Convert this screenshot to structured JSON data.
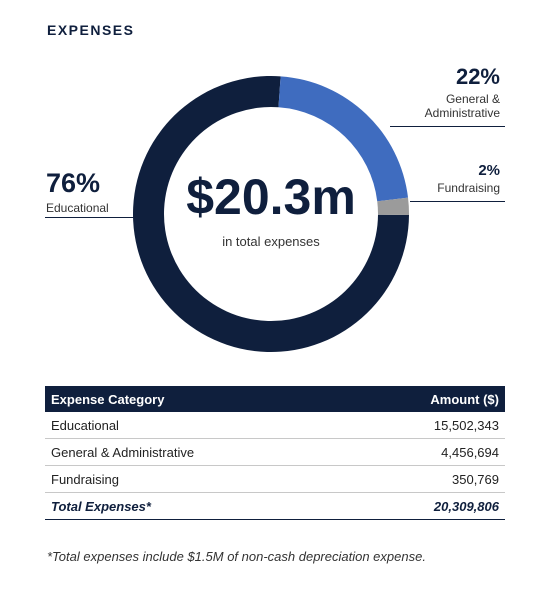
{
  "chart_data": {
    "type": "donut",
    "title": "EXPENSES",
    "center_value": "$20.3m",
    "center_label": "in total expenses",
    "categories": [
      "Educational",
      "General & Administrative",
      "Fundraising"
    ],
    "values": [
      76,
      22,
      2
    ],
    "value_labels": [
      "76%",
      "22%",
      "2%"
    ],
    "colors": [
      "#0f1f3d",
      "#3f6cbf",
      "#9b9b9b"
    ]
  },
  "table": {
    "header": [
      "Expense Category",
      "Amount ($)"
    ],
    "rows": [
      [
        "Educational",
        "15,502,343"
      ],
      [
        "General & Administrative",
        "4,456,694"
      ],
      [
        "Fundraising",
        "350,769"
      ]
    ],
    "total": [
      "Total Expenses*",
      "20,309,806"
    ]
  },
  "footnote": "*Total expenses include $1.5M of non-cash depreciation expense."
}
